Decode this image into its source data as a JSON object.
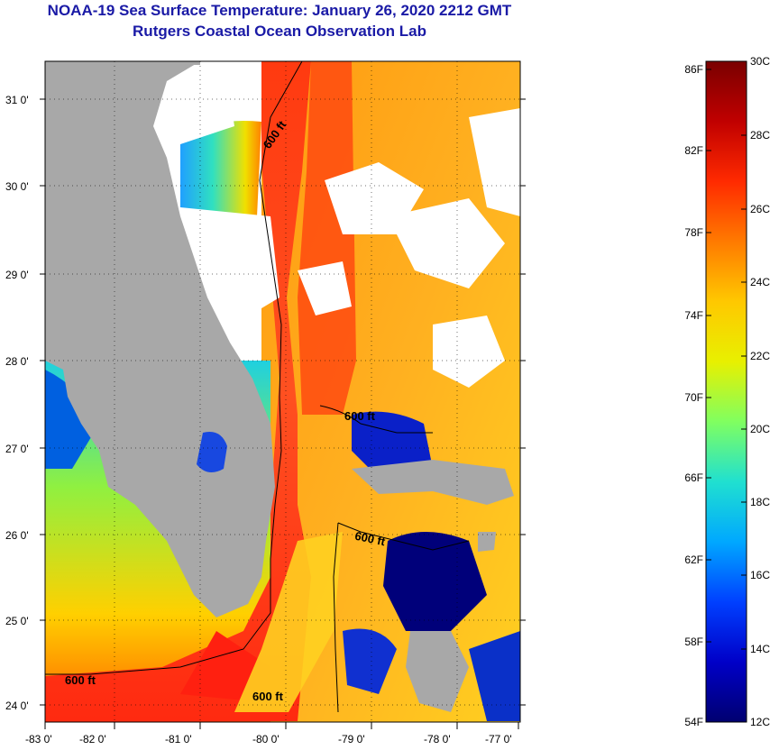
{
  "title": "NOAA-19 Sea Surface Temperature:  January 26, 2020 2212 GMT",
  "subtitle": "Rutgers Coastal Ocean Observation Lab",
  "map": {
    "lon_labels": [
      "-83 0'",
      "-82 0'",
      "-81 0'",
      "-80 0'",
      "-79 0'",
      "-78 0'",
      "-77 0'"
    ],
    "lat_labels": [
      "31 0'",
      "30 0'",
      "29 0'",
      "28 0'",
      "27 0'",
      "26 0'",
      "25 0'",
      "24 0'"
    ],
    "isobath_labels": [
      "600 ft",
      "600 ft",
      "600 ft",
      "600 ft",
      "600 ft"
    ]
  },
  "colorbar": {
    "fahrenheit_labels": [
      "86F",
      "82F",
      "78F",
      "74F",
      "70F",
      "66F",
      "62F",
      "58F",
      "54F"
    ],
    "celsius_labels": [
      "30C",
      "28C",
      "26C",
      "24C",
      "22C",
      "20C",
      "18C",
      "16C",
      "14C",
      "12C"
    ],
    "colors": [
      "#7a0000",
      "#c00000",
      "#ff2a00",
      "#ff7a00",
      "#ffc800",
      "#e8f000",
      "#80ff60",
      "#20e0d0",
      "#00a8ff",
      "#0040ff",
      "#0000c8",
      "#000070"
    ]
  }
}
